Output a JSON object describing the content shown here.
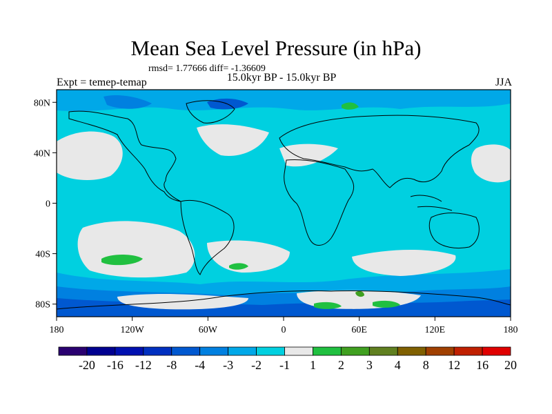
{
  "title": "Mean Sea Level Pressure (in hPa)",
  "stats": "rmsd= 1.77666  diff= -1.36609",
  "left_label": "Expt = temep-temap",
  "center_label": "15.0kyr BP - 15.0kyr BP",
  "right_label": "JJA",
  "map": {
    "projection": "cylindrical-equidistant",
    "lon_range": [
      -180,
      180
    ],
    "lat_range": [
      -90,
      90
    ],
    "background_color": "#00d0e0",
    "x_ticks": [
      {
        "value": -180,
        "label": "180"
      },
      {
        "value": -120,
        "label": "120W"
      },
      {
        "value": -60,
        "label": "60W"
      },
      {
        "value": 0,
        "label": "0"
      },
      {
        "value": 60,
        "label": "60E"
      },
      {
        "value": 120,
        "label": "120E"
      },
      {
        "value": 180,
        "label": "180"
      }
    ],
    "y_ticks": [
      {
        "value": 80,
        "label": "80N"
      },
      {
        "value": 40,
        "label": "40N"
      },
      {
        "value": 0,
        "label": "0"
      },
      {
        "value": -40,
        "label": "40S"
      },
      {
        "value": -80,
        "label": "80S"
      }
    ]
  },
  "colorbar": {
    "colors": [
      "#2a0070",
      "#000090",
      "#0010b0",
      "#0030c0",
      "#0058d0",
      "#0080e0",
      "#00a8e8",
      "#00d0e0",
      "#e8e8e8",
      "#20c040",
      "#40a020",
      "#608020",
      "#806000",
      "#a04000",
      "#c02000",
      "#e00000"
    ],
    "labels": [
      "-20",
      "-16",
      "-12",
      "-8",
      "-4",
      "-3",
      "-2",
      "-1",
      "1",
      "2",
      "3",
      "4",
      "8",
      "12",
      "16",
      "20"
    ]
  }
}
